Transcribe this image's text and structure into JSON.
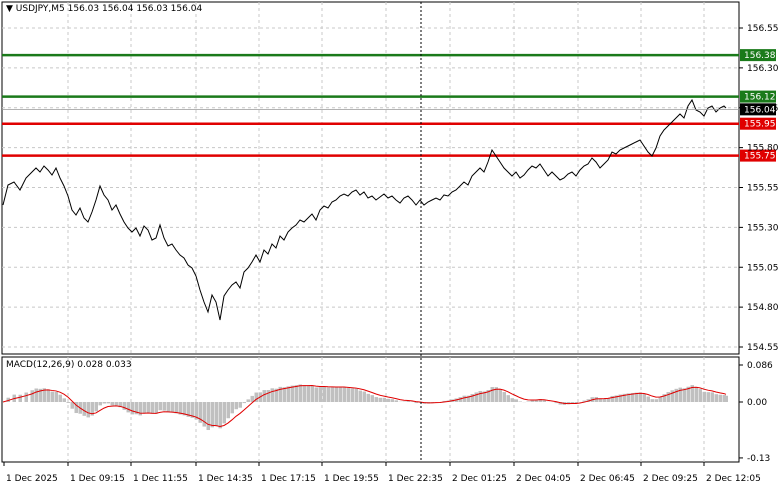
{
  "header": {
    "symbol": "USDJPY,M5",
    "ohlc": "156.03 156.04 156.03 156.04",
    "title": "USDJPY,M5  156.03 156.04 156.03 156.04"
  },
  "macd_panel": {
    "label": "MACD(12,26,9) 0.028 0.033"
  },
  "colors": {
    "background": "#ffffff",
    "price_line": "#000000",
    "grid": "#c8c8c8",
    "support_line": "#e00000",
    "resistance_line": "#1a7a1a",
    "macd_hist": "#c0c0c0",
    "macd_signal": "#e00000",
    "current_price_bg": "#000000"
  },
  "price_axis": {
    "ticks": [
      "156.55",
      "156.30",
      "156.05",
      "155.80",
      "155.55",
      "155.30",
      "155.05",
      "154.80",
      "154.55"
    ],
    "current_price": "156.04"
  },
  "levels": [
    {
      "name": "resistance-2",
      "value": "156.38",
      "color": "#1a7a1a"
    },
    {
      "name": "resistance-1",
      "value": "156.12",
      "color": "#1a7a1a"
    },
    {
      "name": "support-1",
      "value": "155.95",
      "color": "#e00000"
    },
    {
      "name": "support-2",
      "value": "155.75",
      "color": "#e00000"
    }
  ],
  "macd_axis": {
    "ticks": [
      "0.086",
      "0.00",
      "-0.13"
    ]
  },
  "time_axis": {
    "ticks": [
      "1 Dec 2025",
      "1 Dec 09:15",
      "1 Dec 11:55",
      "1 Dec 14:35",
      "1 Dec 17:15",
      "1 Dec 19:55",
      "1 Dec 22:35",
      "2 Dec 01:25",
      "2 Dec 04:05",
      "2 Dec 06:45",
      "2 Dec 09:25",
      "2 Dec 12:05"
    ]
  },
  "chart_data": [
    {
      "type": "line",
      "title": "USDJPY,M5",
      "xlabel": "",
      "ylabel": "",
      "ylim": [
        154.5,
        156.65
      ],
      "grid": true,
      "categories": [
        "1 Dec 2025",
        "1 Dec 09:15",
        "1 Dec 11:55",
        "1 Dec 14:35",
        "1 Dec 17:15",
        "1 Dec 19:55",
        "1 Dec 22:35",
        "2 Dec 01:25",
        "2 Dec 04:05",
        "2 Dec 06:45",
        "2 Dec 09:25",
        "2 Dec 12:05"
      ],
      "series": [
        {
          "name": "Close",
          "values": [
            155.58,
            155.6,
            155.33,
            154.82,
            155.38,
            155.52,
            155.48,
            155.68,
            155.62,
            155.72,
            156.05,
            156.04
          ]
        }
      ],
      "horizontal_levels": [
        156.38,
        156.12,
        155.95,
        155.75
      ]
    },
    {
      "type": "bar",
      "title": "MACD(12,26,9) 0.028 0.033",
      "ylim": [
        -0.13,
        0.086
      ],
      "categories": [
        "1 Dec 2025",
        "1 Dec 09:15",
        "1 Dec 11:55",
        "1 Dec 14:35",
        "1 Dec 17:15",
        "1 Dec 19:55",
        "1 Dec 22:35",
        "2 Dec 01:25",
        "2 Dec 04:05",
        "2 Dec 06:45",
        "2 Dec 09:25",
        "2 Dec 12:05"
      ],
      "series": [
        {
          "name": "MACD histogram",
          "values": [
            -0.01,
            0.01,
            -0.03,
            -0.12,
            0.05,
            0.07,
            0.0,
            0.05,
            0.0,
            0.02,
            0.07,
            0.028
          ]
        },
        {
          "name": "Signal",
          "values": [
            -0.03,
            0.01,
            -0.02,
            -0.08,
            0.02,
            0.06,
            0.01,
            0.03,
            0.01,
            0.01,
            0.05,
            0.033
          ]
        }
      ]
    }
  ]
}
